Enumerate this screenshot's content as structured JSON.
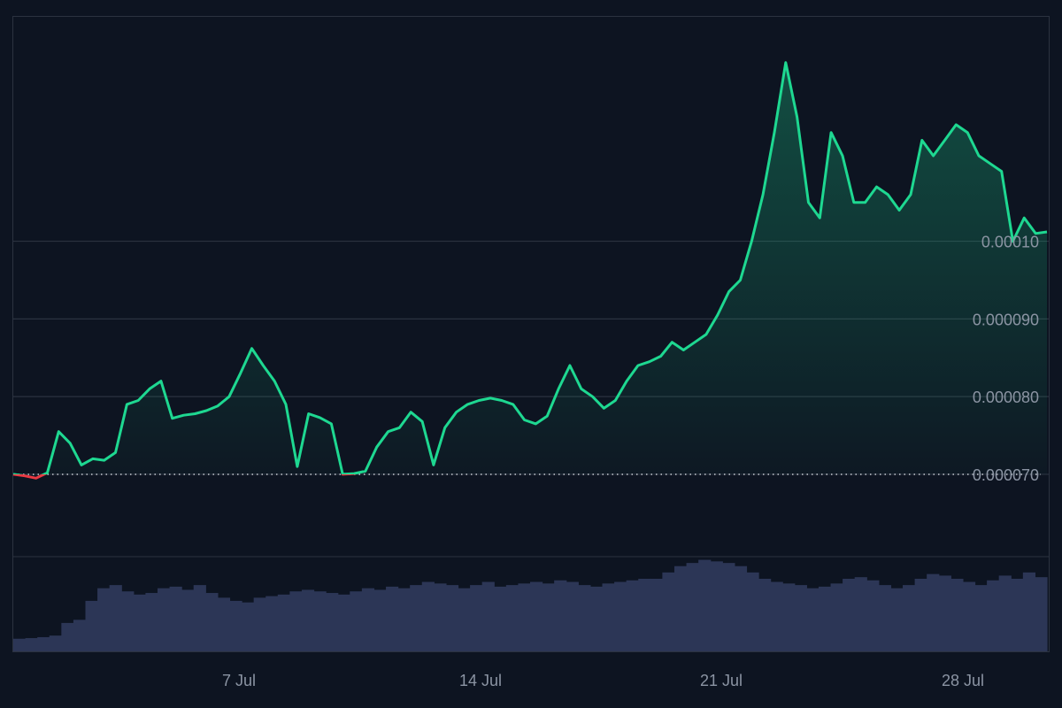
{
  "chart_data": {
    "type": "area",
    "x_ticks": [
      "7 Jul",
      "14 Jul",
      "21 Jul",
      "28 Jul"
    ],
    "y_ticks": [
      "0.000070",
      "0.000080",
      "0.000090",
      "0.00010"
    ],
    "baseline": 7e-05,
    "ylim": [
      5.94e-05,
      0.000129
    ],
    "grid": "horizontal",
    "colors": {
      "background": "#0d1421",
      "up_line": "#1ed891",
      "down_line": "#ea3943",
      "grid": "#2b3240",
      "baseline_dots": "#c9ced6",
      "volume": "#2c3656",
      "tick_text": "#8b94a3"
    },
    "series": [
      {
        "values": [
          7e-05,
          6.98e-05,
          6.95e-05,
          7.02e-05,
          7.55e-05,
          7.4e-05,
          7.12e-05,
          7.2e-05,
          7.18e-05,
          7.28e-05,
          7.9e-05,
          7.95e-05,
          8.1e-05,
          8.2e-05,
          7.72e-05,
          7.76e-05,
          7.78e-05,
          7.82e-05,
          7.88e-05,
          8e-05,
          8.3e-05,
          8.62e-05,
          8.4e-05,
          8.2e-05,
          7.9e-05,
          7.1e-05,
          7.78e-05,
          7.73e-05,
          7.65e-05,
          7e-05,
          7.01e-05,
          7.04e-05,
          7.35e-05,
          7.55e-05,
          7.6e-05,
          7.8e-05,
          7.68e-05,
          7.12e-05,
          7.6e-05,
          7.8e-05,
          7.9e-05,
          7.95e-05,
          7.98e-05,
          7.95e-05,
          7.9e-05,
          7.7e-05,
          7.65e-05,
          7.75e-05,
          8.1e-05,
          8.4e-05,
          8.1e-05,
          8e-05,
          7.85e-05,
          7.95e-05,
          8.2e-05,
          8.4e-05,
          8.45e-05,
          8.52e-05,
          8.7e-05,
          8.6e-05,
          8.7e-05,
          8.8e-05,
          9.05e-05,
          9.35e-05,
          9.5e-05,
          0.0001,
          0.000106,
          0.000114,
          0.000123,
          0.000116,
          0.000105,
          0.000103,
          0.000114,
          0.000111,
          0.000105,
          0.000105,
          0.000107,
          0.000106,
          0.000104,
          0.000106,
          0.000113,
          0.000111,
          0.000113,
          0.000115,
          0.000114,
          0.000111,
          0.00011,
          0.000109,
          0.0001,
          0.000103,
          0.000101,
          0.0001012
        ]
      }
    ],
    "volume": [
      0.04,
      0.042,
      0.045,
      0.05,
      0.09,
      0.1,
      0.16,
      0.2,
      0.21,
      0.19,
      0.18,
      0.185,
      0.2,
      0.205,
      0.195,
      0.21,
      0.185,
      0.17,
      0.16,
      0.155,
      0.17,
      0.175,
      0.18,
      0.19,
      0.195,
      0.19,
      0.185,
      0.18,
      0.19,
      0.2,
      0.195,
      0.205,
      0.2,
      0.21,
      0.22,
      0.215,
      0.21,
      0.2,
      0.21,
      0.22,
      0.205,
      0.21,
      0.215,
      0.22,
      0.215,
      0.225,
      0.22,
      0.21,
      0.205,
      0.215,
      0.22,
      0.225,
      0.23,
      0.23,
      0.25,
      0.27,
      0.28,
      0.29,
      0.285,
      0.28,
      0.27,
      0.25,
      0.23,
      0.22,
      0.215,
      0.21,
      0.2,
      0.205,
      0.215,
      0.23,
      0.235,
      0.225,
      0.21,
      0.2,
      0.21,
      0.23,
      0.245,
      0.24,
      0.23,
      0.22,
      0.21,
      0.225,
      0.24,
      0.23,
      0.25,
      0.235
    ]
  }
}
